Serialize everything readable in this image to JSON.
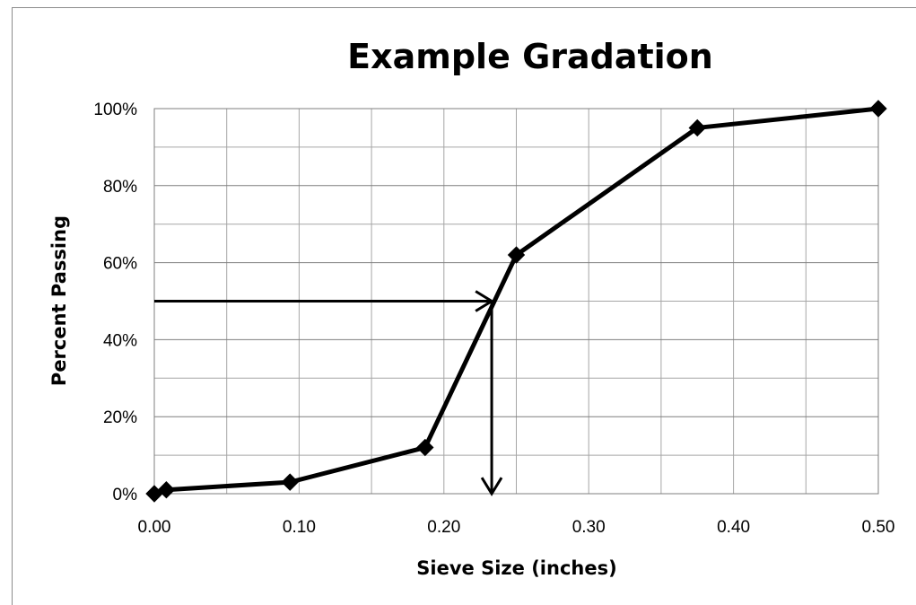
{
  "chart_data": {
    "type": "scatter",
    "title": "Example Gradation",
    "xlabel": "Sieve Size (inches)",
    "ylabel": "Percent Passing",
    "xlim": [
      0,
      0.5
    ],
    "ylim": [
      0,
      100
    ],
    "x_ticks": [
      "0.00",
      "0.10",
      "0.20",
      "0.30",
      "0.40",
      "0.50"
    ],
    "y_ticks": [
      "0%",
      "20%",
      "40%",
      "60%",
      "80%",
      "100%"
    ],
    "grid": true,
    "legend": "none",
    "series": [
      {
        "x": [
          0.0,
          0.0083,
          0.0937,
          0.187,
          0.25,
          0.375,
          0.5
        ],
        "y": [
          0,
          1,
          3,
          12,
          62,
          95,
          100
        ],
        "marker": "diamond",
        "line": true,
        "color": "#000000"
      }
    ],
    "annotations": [
      {
        "type": "arrow",
        "from": [
          0.0,
          50
        ],
        "to": [
          0.233,
          50
        ]
      },
      {
        "type": "arrow",
        "from": [
          0.233,
          50
        ],
        "to": [
          0.233,
          0
        ]
      }
    ]
  }
}
